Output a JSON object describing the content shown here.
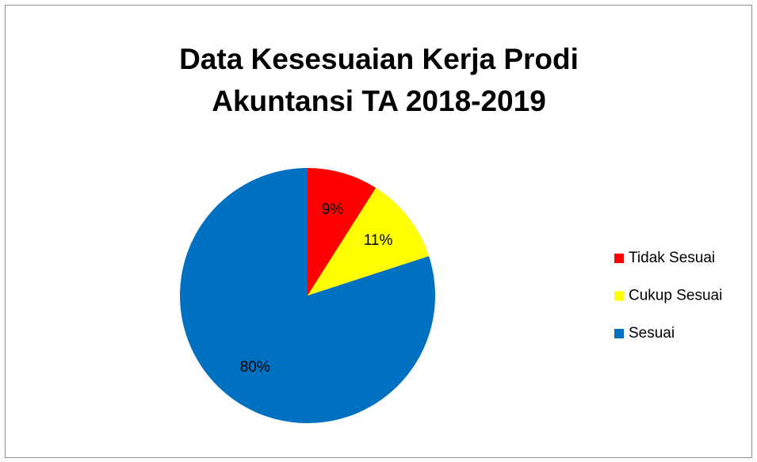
{
  "chart_data": {
    "type": "pie",
    "title": [
      "Data Kesesuaian Kerja Prodi",
      "Akuntansi TA 2018-2019"
    ],
    "categories": [
      "Tidak Sesuai",
      "Cukup Sesuai",
      "Sesuai"
    ],
    "values": [
      9,
      11,
      80
    ],
    "value_labels": [
      "9%",
      "11%",
      "80%"
    ],
    "colors": [
      "#ff0000",
      "#ffff00",
      "#0070c0"
    ],
    "legend": "right"
  }
}
